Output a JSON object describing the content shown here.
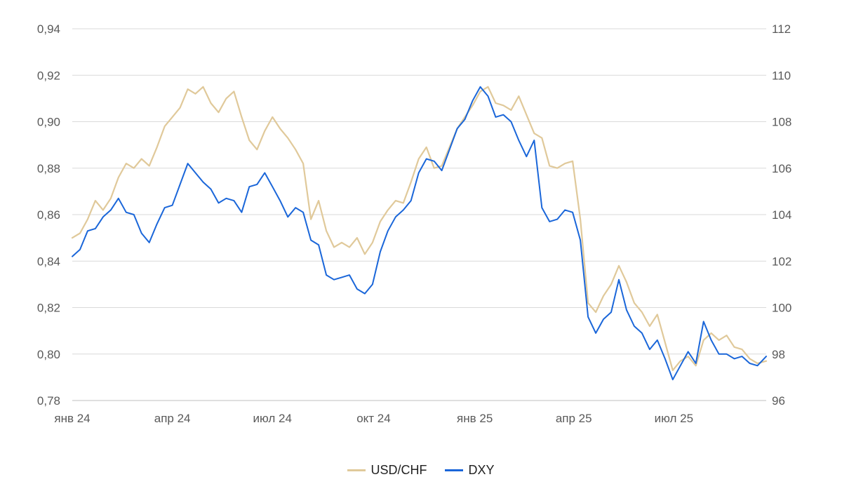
{
  "chart_data": {
    "type": "line",
    "title": "",
    "xlabel": "",
    "ylabel": "",
    "grid": true,
    "legend_position": "bottom-center",
    "x_ticks": [
      "янв 24",
      "апр 24",
      "июл 24",
      "окт 24",
      "янв 25",
      "апр 25",
      "июл 25"
    ],
    "x_tick_dates": [
      "2024-01-01",
      "2024-04-01",
      "2024-07-01",
      "2024-10-01",
      "2025-01-01",
      "2025-04-01",
      "2025-07-01"
    ],
    "x_range": [
      "2024-01-01",
      "2025-09-23"
    ],
    "y_left": {
      "ticks": [
        "0,94",
        "0,92",
        "0,90",
        "0,88",
        "0,86",
        "0,84",
        "0,82",
        "0,80",
        "0,78"
      ],
      "range": [
        0.78,
        0.94
      ]
    },
    "y_right": {
      "ticks": [
        "112",
        "110",
        "108",
        "106",
        "104",
        "102",
        "100",
        "98",
        "96"
      ],
      "range": [
        96,
        112
      ]
    },
    "series": [
      {
        "name": "USD/CHF",
        "axis": "left",
        "color": "#e0c99a",
        "points": [
          [
            "2024-01-01",
            0.85
          ],
          [
            "2024-01-08",
            0.852
          ],
          [
            "2024-01-15",
            0.858
          ],
          [
            "2024-01-22",
            0.866
          ],
          [
            "2024-01-29",
            0.862
          ],
          [
            "2024-02-05",
            0.867
          ],
          [
            "2024-02-12",
            0.876
          ],
          [
            "2024-02-19",
            0.882
          ],
          [
            "2024-02-26",
            0.88
          ],
          [
            "2024-03-04",
            0.884
          ],
          [
            "2024-03-11",
            0.881
          ],
          [
            "2024-03-18",
            0.889
          ],
          [
            "2024-03-25",
            0.898
          ],
          [
            "2024-04-01",
            0.902
          ],
          [
            "2024-04-08",
            0.906
          ],
          [
            "2024-04-15",
            0.914
          ],
          [
            "2024-04-22",
            0.912
          ],
          [
            "2024-04-29",
            0.915
          ],
          [
            "2024-05-06",
            0.908
          ],
          [
            "2024-05-13",
            0.904
          ],
          [
            "2024-05-20",
            0.91
          ],
          [
            "2024-05-27",
            0.913
          ],
          [
            "2024-06-03",
            0.902
          ],
          [
            "2024-06-10",
            0.892
          ],
          [
            "2024-06-17",
            0.888
          ],
          [
            "2024-06-24",
            0.896
          ],
          [
            "2024-07-01",
            0.902
          ],
          [
            "2024-07-08",
            0.897
          ],
          [
            "2024-07-15",
            0.893
          ],
          [
            "2024-07-22",
            0.888
          ],
          [
            "2024-07-29",
            0.882
          ],
          [
            "2024-08-05",
            0.858
          ],
          [
            "2024-08-12",
            0.866
          ],
          [
            "2024-08-19",
            0.853
          ],
          [
            "2024-08-26",
            0.846
          ],
          [
            "2024-09-02",
            0.848
          ],
          [
            "2024-09-09",
            0.846
          ],
          [
            "2024-09-16",
            0.85
          ],
          [
            "2024-09-23",
            0.843
          ],
          [
            "2024-09-30",
            0.848
          ],
          [
            "2024-10-07",
            0.857
          ],
          [
            "2024-10-14",
            0.862
          ],
          [
            "2024-10-21",
            0.866
          ],
          [
            "2024-10-28",
            0.865
          ],
          [
            "2024-11-04",
            0.874
          ],
          [
            "2024-11-11",
            0.884
          ],
          [
            "2024-11-18",
            0.889
          ],
          [
            "2024-11-25",
            0.88
          ],
          [
            "2024-12-02",
            0.881
          ],
          [
            "2024-12-09",
            0.889
          ],
          [
            "2024-12-16",
            0.897
          ],
          [
            "2024-12-23",
            0.902
          ],
          [
            "2024-12-30",
            0.907
          ],
          [
            "2025-01-06",
            0.913
          ],
          [
            "2025-01-13",
            0.915
          ],
          [
            "2025-01-20",
            0.908
          ],
          [
            "2025-01-27",
            0.907
          ],
          [
            "2025-02-03",
            0.905
          ],
          [
            "2025-02-10",
            0.911
          ],
          [
            "2025-02-17",
            0.903
          ],
          [
            "2025-02-24",
            0.895
          ],
          [
            "2025-03-03",
            0.893
          ],
          [
            "2025-03-10",
            0.881
          ],
          [
            "2025-03-17",
            0.88
          ],
          [
            "2025-03-24",
            0.882
          ],
          [
            "2025-03-31",
            0.883
          ],
          [
            "2025-04-07",
            0.858
          ],
          [
            "2025-04-14",
            0.822
          ],
          [
            "2025-04-21",
            0.818
          ],
          [
            "2025-04-28",
            0.825
          ],
          [
            "2025-05-05",
            0.83
          ],
          [
            "2025-05-12",
            0.838
          ],
          [
            "2025-05-19",
            0.831
          ],
          [
            "2025-05-26",
            0.822
          ],
          [
            "2025-06-02",
            0.818
          ],
          [
            "2025-06-09",
            0.812
          ],
          [
            "2025-06-16",
            0.817
          ],
          [
            "2025-06-23",
            0.805
          ],
          [
            "2025-06-30",
            0.793
          ],
          [
            "2025-07-07",
            0.797
          ],
          [
            "2025-07-14",
            0.799
          ],
          [
            "2025-07-21",
            0.795
          ],
          [
            "2025-07-28",
            0.806
          ],
          [
            "2025-08-04",
            0.809
          ],
          [
            "2025-08-11",
            0.806
          ],
          [
            "2025-08-18",
            0.808
          ],
          [
            "2025-08-25",
            0.803
          ],
          [
            "2025-09-01",
            0.802
          ],
          [
            "2025-09-08",
            0.798
          ],
          [
            "2025-09-15",
            0.796
          ],
          [
            "2025-09-23",
            0.797
          ]
        ]
      },
      {
        "name": "DXY",
        "axis": "right",
        "color": "#1a66d9",
        "points": [
          [
            "2024-01-01",
            102.2
          ],
          [
            "2024-01-08",
            102.5
          ],
          [
            "2024-01-15",
            103.3
          ],
          [
            "2024-01-22",
            103.4
          ],
          [
            "2024-01-29",
            103.9
          ],
          [
            "2024-02-05",
            104.2
          ],
          [
            "2024-02-12",
            104.7
          ],
          [
            "2024-02-19",
            104.1
          ],
          [
            "2024-02-26",
            104.0
          ],
          [
            "2024-03-04",
            103.2
          ],
          [
            "2024-03-11",
            102.8
          ],
          [
            "2024-03-18",
            103.6
          ],
          [
            "2024-03-25",
            104.3
          ],
          [
            "2024-04-01",
            104.4
          ],
          [
            "2024-04-08",
            105.3
          ],
          [
            "2024-04-15",
            106.2
          ],
          [
            "2024-04-22",
            105.8
          ],
          [
            "2024-04-29",
            105.4
          ],
          [
            "2024-05-06",
            105.1
          ],
          [
            "2024-05-13",
            104.5
          ],
          [
            "2024-05-20",
            104.7
          ],
          [
            "2024-05-27",
            104.6
          ],
          [
            "2024-06-03",
            104.1
          ],
          [
            "2024-06-10",
            105.2
          ],
          [
            "2024-06-17",
            105.3
          ],
          [
            "2024-06-24",
            105.8
          ],
          [
            "2024-07-01",
            105.2
          ],
          [
            "2024-07-08",
            104.6
          ],
          [
            "2024-07-15",
            103.9
          ],
          [
            "2024-07-22",
            104.3
          ],
          [
            "2024-07-29",
            104.1
          ],
          [
            "2024-08-05",
            102.9
          ],
          [
            "2024-08-12",
            102.7
          ],
          [
            "2024-08-19",
            101.4
          ],
          [
            "2024-08-26",
            101.2
          ],
          [
            "2024-09-02",
            101.3
          ],
          [
            "2024-09-09",
            101.4
          ],
          [
            "2024-09-16",
            100.8
          ],
          [
            "2024-09-23",
            100.6
          ],
          [
            "2024-09-30",
            101.0
          ],
          [
            "2024-10-07",
            102.4
          ],
          [
            "2024-10-14",
            103.3
          ],
          [
            "2024-10-21",
            103.9
          ],
          [
            "2024-10-28",
            104.2
          ],
          [
            "2024-11-04",
            104.6
          ],
          [
            "2024-11-11",
            105.8
          ],
          [
            "2024-11-18",
            106.4
          ],
          [
            "2024-11-25",
            106.3
          ],
          [
            "2024-12-02",
            105.9
          ],
          [
            "2024-12-09",
            106.8
          ],
          [
            "2024-12-16",
            107.7
          ],
          [
            "2024-12-23",
            108.1
          ],
          [
            "2024-12-30",
            108.9
          ],
          [
            "2025-01-06",
            109.5
          ],
          [
            "2025-01-13",
            109.1
          ],
          [
            "2025-01-20",
            108.2
          ],
          [
            "2025-01-27",
            108.3
          ],
          [
            "2025-02-03",
            108.0
          ],
          [
            "2025-02-10",
            107.2
          ],
          [
            "2025-02-17",
            106.5
          ],
          [
            "2025-02-24",
            107.2
          ],
          [
            "2025-03-03",
            104.3
          ],
          [
            "2025-03-10",
            103.7
          ],
          [
            "2025-03-17",
            103.8
          ],
          [
            "2025-03-24",
            104.2
          ],
          [
            "2025-03-31",
            104.1
          ],
          [
            "2025-04-07",
            102.9
          ],
          [
            "2025-04-14",
            99.6
          ],
          [
            "2025-04-21",
            98.9
          ],
          [
            "2025-04-28",
            99.5
          ],
          [
            "2025-05-05",
            99.8
          ],
          [
            "2025-05-12",
            101.2
          ],
          [
            "2025-05-19",
            99.9
          ],
          [
            "2025-05-26",
            99.2
          ],
          [
            "2025-06-02",
            98.9
          ],
          [
            "2025-06-09",
            98.2
          ],
          [
            "2025-06-16",
            98.6
          ],
          [
            "2025-06-23",
            97.8
          ],
          [
            "2025-06-30",
            96.9
          ],
          [
            "2025-07-07",
            97.5
          ],
          [
            "2025-07-14",
            98.1
          ],
          [
            "2025-07-21",
            97.6
          ],
          [
            "2025-07-28",
            99.4
          ],
          [
            "2025-08-04",
            98.6
          ],
          [
            "2025-08-11",
            98.0
          ],
          [
            "2025-08-18",
            98.0
          ],
          [
            "2025-08-25",
            97.8
          ],
          [
            "2025-09-01",
            97.9
          ],
          [
            "2025-09-08",
            97.6
          ],
          [
            "2025-09-15",
            97.5
          ],
          [
            "2025-09-23",
            97.9
          ]
        ]
      }
    ]
  }
}
